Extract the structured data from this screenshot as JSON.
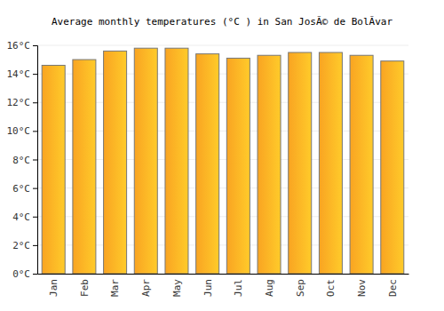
{
  "chart_data": {
    "type": "bar",
    "title": "Average monthly temperatures (°C ) in San JosÃ© de BolÃ­var",
    "categories": [
      "Jan",
      "Feb",
      "Mar",
      "Apr",
      "May",
      "Jun",
      "Jul",
      "Aug",
      "Sep",
      "Oct",
      "Nov",
      "Dec"
    ],
    "values": [
      14.6,
      15.0,
      15.6,
      15.8,
      15.8,
      15.4,
      15.1,
      15.3,
      15.5,
      15.5,
      15.3,
      14.9
    ],
    "color": "#f9a422",
    "ylim": [
      0,
      16
    ],
    "yticks": [
      {
        "value": 0,
        "label": "0°C"
      },
      {
        "value": 2,
        "label": "2°C"
      },
      {
        "value": 4,
        "label": "4°C"
      },
      {
        "value": 6,
        "label": "6°C"
      },
      {
        "value": 8,
        "label": "8°C"
      },
      {
        "value": 10,
        "label": "10°C"
      },
      {
        "value": 12,
        "label": "12°C"
      },
      {
        "value": 14,
        "label": "14°C"
      },
      {
        "value": 16,
        "label": "16°C"
      }
    ],
    "grid": true
  }
}
